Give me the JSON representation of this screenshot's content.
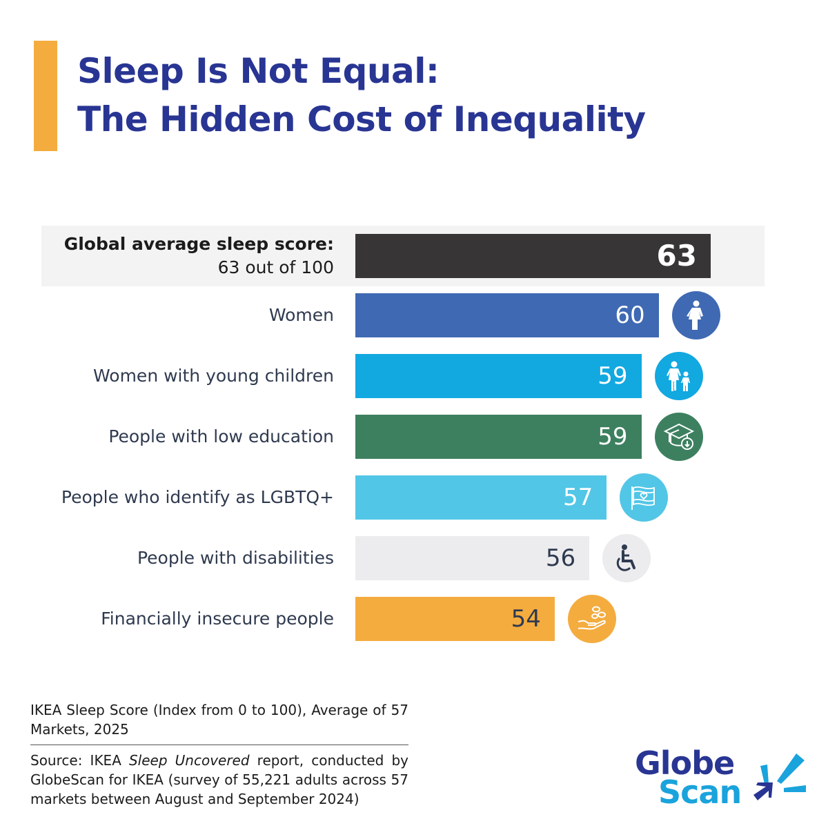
{
  "title": {
    "line1": "Sleep Is Not Equal:",
    "line2": "The Hidden Cost of Inequality"
  },
  "chart_data": {
    "type": "bar",
    "orientation": "horizontal",
    "highlight": {
      "label_bold": "Global average sleep score:",
      "label_plain": "63 out of 100"
    },
    "categories": [
      "Global average sleep score: 63 out of 100",
      "Women",
      "Women with young children",
      "People with low education",
      "People who identify as LGBTQ+",
      "People with disabilities",
      "Financially insecure people"
    ],
    "labels": [
      "",
      "Women",
      "Women with young children",
      "People with low education",
      "People who identify as LGBTQ+",
      "People with disabilities",
      "Financially insecure people"
    ],
    "values": [
      63,
      60,
      59,
      59,
      57,
      56,
      54
    ],
    "value_labels": [
      "63",
      "60",
      "59",
      "59",
      "57",
      "56",
      "54"
    ],
    "colors": [
      "#373536",
      "#3f69b3",
      "#12a8e0",
      "#3d8060",
      "#52c6e6",
      "#ececee",
      "#f4ac3f"
    ],
    "value_text_colors": [
      "#ffffff",
      "#ffffff",
      "#ffffff",
      "#ffffff",
      "#ffffff",
      "#2f3a4f",
      "#2f3a4f"
    ],
    "icons": [
      "",
      "woman-icon",
      "woman-with-child-icon",
      "graduation-cap-down-icon",
      "pride-flag-heart-icon",
      "wheelchair-icon",
      "hand-coins-icon"
    ],
    "grid": false,
    "legend": "none"
  },
  "footnote": {
    "index_note": "IKEA Sleep Score (Index from 0 to 100), Average of 57 Markets, 2025",
    "source_prefix": "Source: IKEA ",
    "source_italic": "Sleep Uncovered",
    "source_suffix": " report, conducted by GlobeScan for IKEA (survey of 55,221 adults across 57 markets between August and September 2024)"
  },
  "logo": {
    "line1": "Globe",
    "line2": "Scan"
  }
}
